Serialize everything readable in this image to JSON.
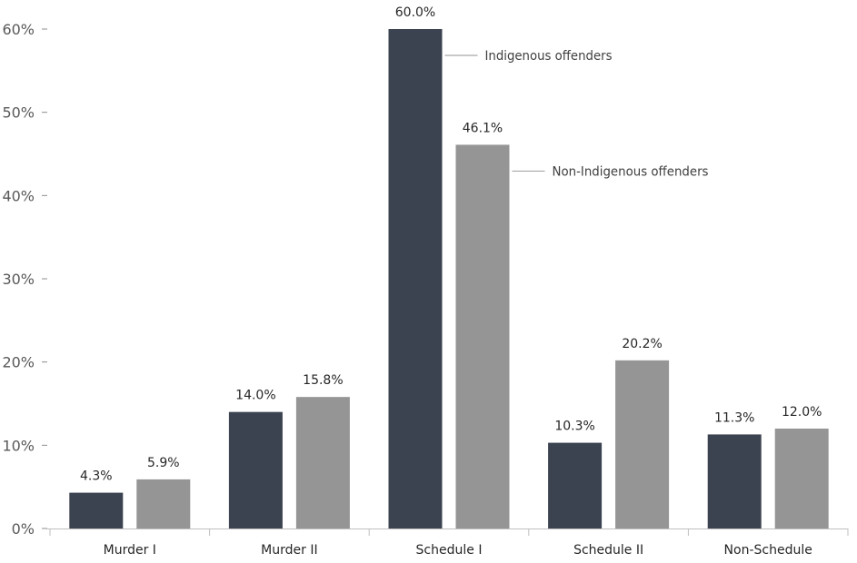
{
  "chart_data": {
    "type": "bar",
    "categories": [
      "Murder I",
      "Murder II",
      "Schedule I",
      "Schedule II",
      "Non-Schedule"
    ],
    "series": [
      {
        "name": "Indigenous offenders",
        "values": [
          4.3,
          14.0,
          60.0,
          10.3,
          11.3
        ],
        "labels": [
          "4.3%",
          "14.0%",
          "60.0%",
          "10.3%",
          "11.3%"
        ],
        "color": "#3b4350"
      },
      {
        "name": "Non-Indigenous offenders",
        "values": [
          5.9,
          15.8,
          46.1,
          20.2,
          12.0
        ],
        "labels": [
          "5.9%",
          "15.8%",
          "46.1%",
          "20.2%",
          "12.0%"
        ],
        "color": "#959595"
      }
    ],
    "yticks": [
      0,
      10,
      20,
      30,
      40,
      50,
      60
    ],
    "ytick_labels": [
      "0%",
      "10%",
      "20%",
      "30%",
      "40%",
      "50%",
      "60%"
    ],
    "ylim": [
      0,
      60
    ],
    "grid": false,
    "legend": "inline callouts beside the Schedule I bars"
  }
}
